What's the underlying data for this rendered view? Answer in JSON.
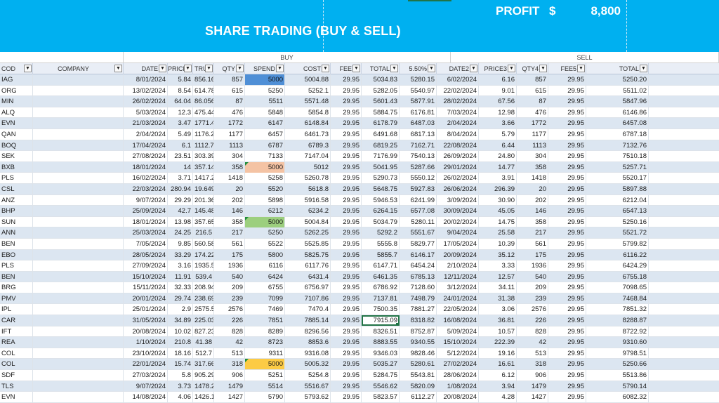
{
  "banner": {
    "profit_label": "PROFIT",
    "profit_currency": "$",
    "profit_value": "8,800",
    "title": "SHARE TRADING (BUY & SELL)"
  },
  "groups": {
    "buy": "BUY",
    "sell": "SELL"
  },
  "columns": [
    "COD",
    "COMPANY",
    "DATE",
    "PRICE",
    "TRU",
    "QTY",
    "SPEND",
    "COST",
    "FEE",
    "TOTAL",
    "5.50%",
    "DATE2",
    "PRICE3",
    "QTY4",
    "FEE5",
    "TOTAL"
  ],
  "highlight_colors": {
    "blue": "#4f8fd6",
    "peach": "#f4c3a4",
    "green": "#9ccf7e",
    "yellow": "#fccb45",
    "header_band": "#00b0f0"
  },
  "rows": [
    [
      "IAG",
      "",
      "8/01/2024",
      "5.84",
      "856.16",
      "857",
      "5000",
      "5004.88",
      "29.95",
      "5034.83",
      "5280.15",
      "6/02/2024",
      "6.16",
      "857",
      "29.95",
      "5250.20"
    ],
    [
      "ORG",
      "",
      "13/02/2024",
      "8.54",
      "614.78",
      "615",
      "5250",
      "5252.1",
      "29.95",
      "5282.05",
      "5540.97",
      "22/02/2024",
      "9.01",
      "615",
      "29.95",
      "5511.02"
    ],
    [
      "MIN",
      "",
      "26/02/2024",
      "64.04",
      "86.056",
      "87",
      "5511",
      "5571.48",
      "29.95",
      "5601.43",
      "5877.91",
      "28/02/2024",
      "67.56",
      "87",
      "29.95",
      "5847.96"
    ],
    [
      "ALQ",
      "",
      "5/03/2024",
      "12.3",
      "475.44",
      "476",
      "5848",
      "5854.8",
      "29.95",
      "5884.75",
      "6176.81",
      "7/03/2024",
      "12.98",
      "476",
      "29.95",
      "6146.86"
    ],
    [
      "EVN",
      "",
      "21/03/2024",
      "3.47",
      "1771.4",
      "1772",
      "6147",
      "6148.84",
      "29.95",
      "6178.79",
      "6487.03",
      "2/04/2024",
      "3.66",
      "1772",
      "29.95",
      "6457.08"
    ],
    [
      "QAN",
      "",
      "2/04/2024",
      "5.49",
      "1176.2",
      "1177",
      "6457",
      "6461.73",
      "29.95",
      "6491.68",
      "6817.13",
      "8/04/2024",
      "5.79",
      "1177",
      "29.95",
      "6787.18"
    ],
    [
      "BOQ",
      "",
      "17/04/2024",
      "6.1",
      "1112.7",
      "1113",
      "6787",
      "6789.3",
      "29.95",
      "6819.25",
      "7162.71",
      "22/08/2024",
      "6.44",
      "1113",
      "29.95",
      "7132.76"
    ],
    [
      "SEK",
      "",
      "27/08/2024",
      "23.51",
      "303.39",
      "304",
      "7133",
      "7147.04",
      "29.95",
      "7176.99",
      "7540.13",
      "26/09/2024",
      "24.80",
      "304",
      "29.95",
      "7510.18"
    ],
    [
      "BXB",
      "",
      "18/01/2024",
      "14",
      "357.14",
      "358",
      "5000",
      "5012",
      "29.95",
      "5041.95",
      "5287.66",
      "29/01/2024",
      "14.77",
      "358",
      "29.95",
      "5257.71"
    ],
    [
      "PLS",
      "",
      "16/02/2024",
      "3.71",
      "1417.2",
      "1418",
      "5258",
      "5260.78",
      "29.95",
      "5290.73",
      "5550.12",
      "26/02/2024",
      "3.91",
      "1418",
      "29.95",
      "5520.17"
    ],
    [
      "CSL",
      "",
      "22/03/2024",
      "280.94",
      "19.649",
      "20",
      "5520",
      "5618.8",
      "29.95",
      "5648.75",
      "5927.83",
      "26/06/2024",
      "296.39",
      "20",
      "29.95",
      "5897.88"
    ],
    [
      "ANZ",
      "",
      "9/07/2024",
      "29.29",
      "201.36",
      "202",
      "5898",
      "5916.58",
      "29.95",
      "5946.53",
      "6241.99",
      "3/09/2024",
      "30.90",
      "202",
      "29.95",
      "6212.04"
    ],
    [
      "BHP",
      "",
      "25/09/2024",
      "42.7",
      "145.48",
      "146",
      "6212",
      "6234.2",
      "29.95",
      "6264.15",
      "6577.08",
      "30/09/2024",
      "45.05",
      "146",
      "29.95",
      "6547.13"
    ],
    [
      "SUN",
      "",
      "18/01/2024",
      "13.98",
      "357.65",
      "358",
      "5000",
      "5004.84",
      "29.95",
      "5034.79",
      "5280.11",
      "20/02/2024",
      "14.75",
      "358",
      "29.95",
      "5250.16"
    ],
    [
      "ANN",
      "",
      "25/03/2024",
      "24.25",
      "216.5",
      "217",
      "5250",
      "5262.25",
      "29.95",
      "5292.2",
      "5551.67",
      "9/04/2024",
      "25.58",
      "217",
      "29.95",
      "5521.72"
    ],
    [
      "BEN",
      "",
      "7/05/2024",
      "9.85",
      "560.58",
      "561",
      "5522",
      "5525.85",
      "29.95",
      "5555.8",
      "5829.77",
      "17/05/2024",
      "10.39",
      "561",
      "29.95",
      "5799.82"
    ],
    [
      "EBO",
      "",
      "28/05/2024",
      "33.29",
      "174.22",
      "175",
      "5800",
      "5825.75",
      "29.95",
      "5855.7",
      "6146.17",
      "20/09/2024",
      "35.12",
      "175",
      "29.95",
      "6116.22"
    ],
    [
      "PLS",
      "",
      "27/09/2024",
      "3.16",
      "1935.5",
      "1936",
      "6116",
      "6117.76",
      "29.95",
      "6147.71",
      "6454.24",
      "2/10/2024",
      "3.33",
      "1936",
      "29.95",
      "6424.29"
    ],
    [
      "BEN",
      "",
      "15/10/2024",
      "11.91",
      "539.4",
      "540",
      "6424",
      "6431.4",
      "29.95",
      "6461.35",
      "6785.13",
      "12/11/2024",
      "12.57",
      "540",
      "29.95",
      "6755.18"
    ],
    [
      "BRG",
      "",
      "15/11/2024",
      "32.33",
      "208.94",
      "209",
      "6755",
      "6756.97",
      "29.95",
      "6786.92",
      "7128.60",
      "3/12/2024",
      "34.11",
      "209",
      "29.95",
      "7098.65"
    ],
    [
      "PMV",
      "",
      "20/01/2024",
      "29.74",
      "238.69",
      "239",
      "7099",
      "7107.86",
      "29.95",
      "7137.81",
      "7498.79",
      "24/01/2024",
      "31.38",
      "239",
      "29.95",
      "7468.84"
    ],
    [
      "IPL",
      "",
      "25/01/2024",
      "2.9",
      "2575.5",
      "2576",
      "7469",
      "7470.4",
      "29.95",
      "7500.35",
      "7881.27",
      "22/05/2024",
      "3.06",
      "2576",
      "29.95",
      "7851.32"
    ],
    [
      "CAR",
      "",
      "31/05/2024",
      "34.89",
      "225.03",
      "226",
      "7851",
      "7885.14",
      "29.95",
      "7915.09",
      "8318.82",
      "16/08/2024",
      "36.81",
      "226",
      "29.95",
      "8288.87"
    ],
    [
      "IFT",
      "",
      "20/08/2024",
      "10.02",
      "827.23",
      "828",
      "8289",
      "8296.56",
      "29.95",
      "8326.51",
      "8752.87",
      "5/09/2024",
      "10.57",
      "828",
      "29.95",
      "8722.92"
    ],
    [
      "REA",
      "",
      "1/10/2024",
      "210.8",
      "41.38",
      "42",
      "8723",
      "8853.6",
      "29.95",
      "8883.55",
      "9340.55",
      "15/10/2024",
      "222.39",
      "42",
      "29.95",
      "9310.60"
    ],
    [
      "COL",
      "",
      "23/10/2024",
      "18.16",
      "512.7",
      "513",
      "9311",
      "9316.08",
      "29.95",
      "9346.03",
      "9828.46",
      "5/12/2024",
      "19.16",
      "513",
      "29.95",
      "9798.51"
    ],
    [
      "COL",
      "",
      "22/01/2024",
      "15.74",
      "317.66",
      "318",
      "5000",
      "5005.32",
      "29.95",
      "5035.27",
      "5280.61",
      "27/02/2024",
      "16.61",
      "318",
      "29.95",
      "5250.66"
    ],
    [
      "SDF",
      "",
      "27/03/2024",
      "5.8",
      "905.29",
      "906",
      "5251",
      "5254.8",
      "29.95",
      "5284.75",
      "5543.81",
      "28/06/2024",
      "6.12",
      "906",
      "29.95",
      "5513.86"
    ],
    [
      "TLS",
      "",
      "9/07/2024",
      "3.73",
      "1478.2",
      "1479",
      "5514",
      "5516.67",
      "29.95",
      "5546.62",
      "5820.09",
      "1/08/2024",
      "3.94",
      "1479",
      "29.95",
      "5790.14"
    ],
    [
      "EVN",
      "",
      "14/08/2024",
      "4.06",
      "1426.1",
      "1427",
      "5790",
      "5793.62",
      "29.95",
      "5823.57",
      "6112.27",
      "20/08/2024",
      "4.28",
      "1427",
      "29.95",
      "6082.32"
    ],
    [
      "PMV",
      "",
      "29/10/2024",
      "33.94",
      "179.21",
      "180",
      "6082",
      "6109.2",
      "29.95",
      "6139.15",
      "6445.21",
      "5/12/2024",
      "35.81",
      "180",
      "29.95",
      "6415.26"
    ]
  ]
}
